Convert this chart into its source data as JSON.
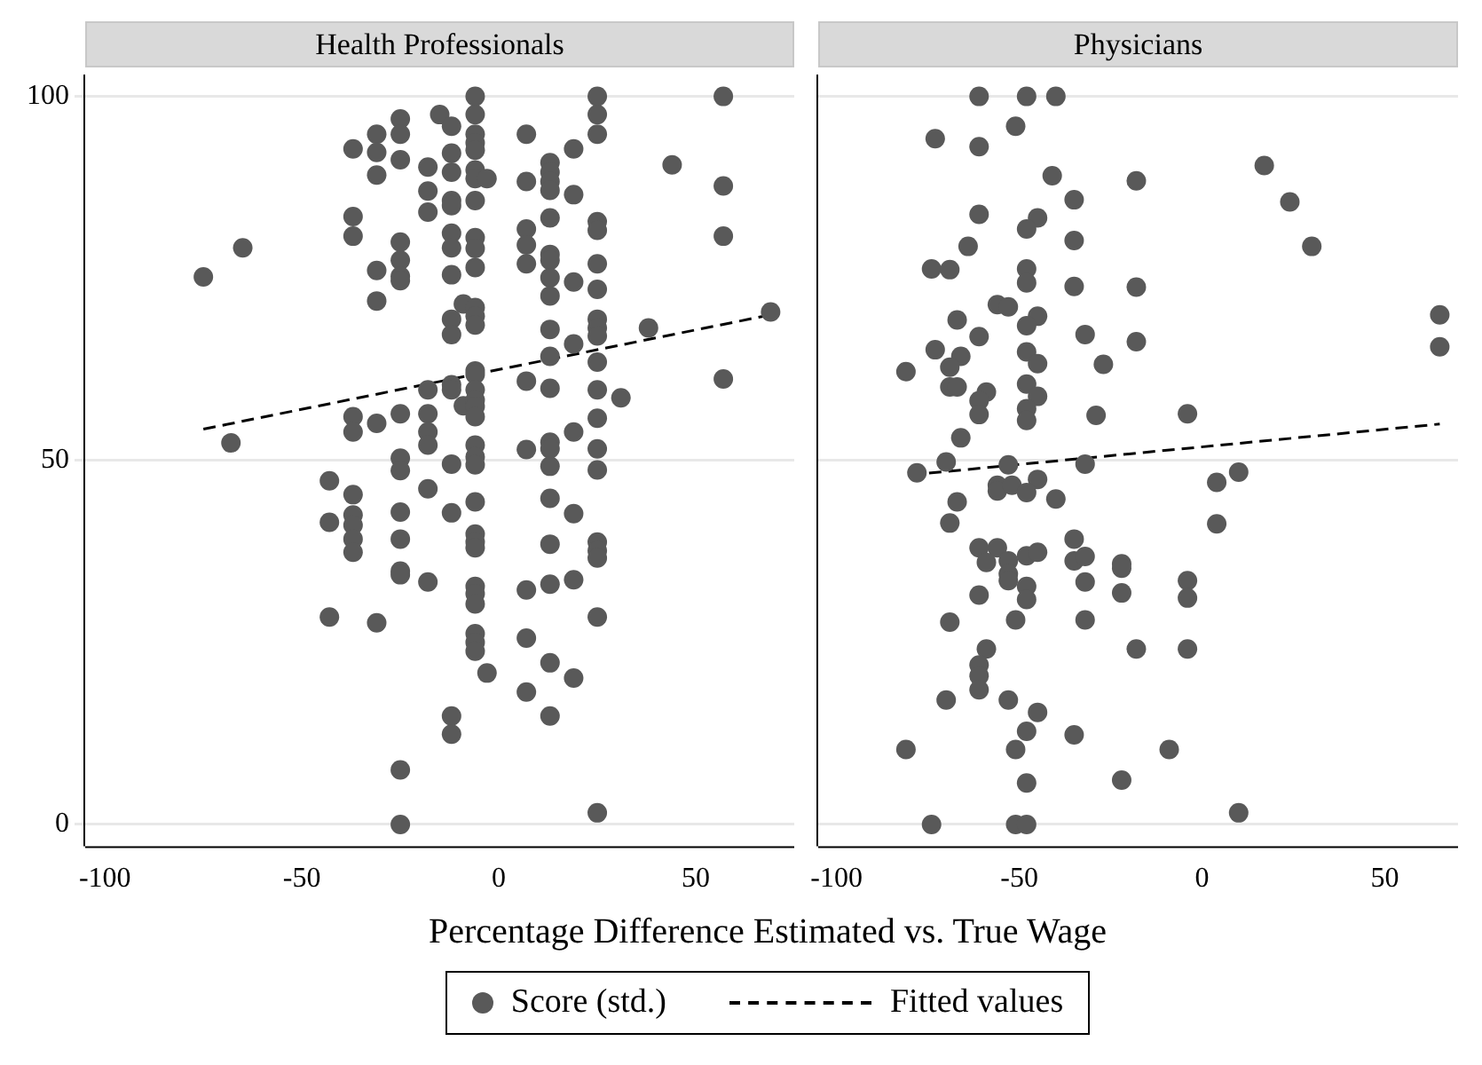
{
  "chart_data": [
    {
      "type": "scatter",
      "title": "Health Professionals",
      "xlabel": "Percentage Difference Estimated vs. True Wage",
      "xlim": [
        -105,
        75
      ],
      "xticks": [
        -100,
        -50,
        0,
        50
      ],
      "ylim": [
        -3,
        103
      ],
      "yticks": [
        0,
        50,
        100
      ],
      "grid": "y",
      "legend": "bottom",
      "series": [
        {
          "name": "Score (std.)",
          "marker": "circle",
          "color": "#595959",
          "x": [
            -75,
            -68,
            -65,
            -43,
            -43,
            -43,
            -37,
            -37,
            -37,
            -37,
            -37,
            -37,
            -37,
            -37,
            -37,
            -37,
            -31,
            -31,
            -31,
            -31,
            -31,
            -31,
            -31,
            -25,
            -25,
            -25,
            -25,
            -25,
            -25,
            -25,
            -25,
            -25,
            -25,
            -25,
            -25,
            -25,
            -25,
            -25,
            -25,
            -18,
            -18,
            -18,
            -18,
            -18,
            -18,
            -18,
            -18,
            -18,
            -15,
            -12,
            -12,
            -12,
            -12,
            -12,
            -12,
            -12,
            -12,
            -12,
            -12,
            -12,
            -12,
            -12,
            -12,
            -12,
            -12,
            -9,
            -9,
            -6,
            -6,
            -6,
            -6,
            -6,
            -6,
            -6,
            -6,
            -6,
            -6,
            -6,
            -6,
            -6,
            -6,
            -6,
            -6,
            -6,
            -6,
            -6,
            -6,
            -6,
            -6,
            -6,
            -6,
            -6,
            -6,
            -6,
            -6,
            -6,
            -6,
            -6,
            -6,
            -6,
            -3,
            -3,
            7,
            7,
            7,
            7,
            7,
            7,
            7,
            7,
            7,
            7,
            13,
            13,
            13,
            13,
            13,
            13,
            13,
            13,
            13,
            13,
            13,
            13,
            13,
            13,
            13,
            13,
            13,
            13,
            13,
            13,
            19,
            19,
            19,
            19,
            19,
            19,
            19,
            19,
            25,
            25,
            25,
            25,
            25,
            25,
            25,
            25,
            25,
            25,
            25,
            25,
            25,
            25,
            25,
            25,
            25,
            25,
            25,
            25,
            31,
            38,
            44,
            57,
            57,
            57,
            57,
            69
          ],
          "values": [
            75.2,
            52.4,
            79.2,
            47.2,
            41.5,
            28.5,
            92.8,
            83.5,
            80.8,
            56,
            53.9,
            45.3,
            42.5,
            41.1,
            39.2,
            37.4,
            94.8,
            92.3,
            89.2,
            76.1,
            71.9,
            55.1,
            27.7,
            96.9,
            94.8,
            91.3,
            80,
            77.5,
            75.3,
            74.7,
            56.4,
            50.3,
            48.6,
            42.9,
            39.2,
            34.8,
            34.3,
            7.5,
            0,
            90.3,
            87,
            84.1,
            59.7,
            56.4,
            53.9,
            52.1,
            46.1,
            33.3,
            97.5,
            95.9,
            92.2,
            89.6,
            85.7,
            85,
            81.2,
            79.2,
            75.5,
            69.4,
            67.3,
            60.4,
            59.7,
            49.5,
            42.8,
            14.9,
            12.4,
            71.5,
            57.5,
            100,
            97.5,
            94.8,
            93.6,
            92.6,
            89.9,
            88.7,
            85.7,
            80.6,
            79.1,
            76.5,
            71,
            69.8,
            68.6,
            62.3,
            61.8,
            59.7,
            58.3,
            57.4,
            56,
            52.1,
            50.5,
            49.4,
            44.3,
            39.9,
            38.8,
            38,
            32.7,
            31.7,
            30.3,
            26.2,
            25,
            23.8,
            88.7,
            20.8,
            94.8,
            88.3,
            81.8,
            79.6,
            77,
            60.9,
            51.5,
            32.2,
            25.6,
            18.2,
            90.9,
            89.6,
            88.3,
            87.1,
            83.3,
            78.3,
            77.5,
            75.1,
            72.6,
            68,
            64.3,
            59.9,
            52.5,
            51.6,
            49.2,
            44.8,
            38.5,
            33,
            22.2,
            14.9,
            92.8,
            86.5,
            74.5,
            66,
            53.9,
            42.7,
            33.6,
            20.1,
            100,
            97.5,
            94.8,
            82.8,
            81.6,
            77,
            73.5,
            69.4,
            68.2,
            67.1,
            63.5,
            59.7,
            55.8,
            51.6,
            48.7,
            38.8,
            37.6,
            36.6,
            28.5,
            1.6,
            58.6,
            68.2,
            90.6,
            100,
            87.7,
            80.8,
            61.2,
            70.4
          ]
        },
        {
          "name": "Fitted values",
          "type": "line",
          "line_style": "dashed",
          "color": "#000000",
          "x": [
            -75,
            69
          ],
          "values": [
            54.3,
            70.0
          ]
        }
      ]
    },
    {
      "type": "scatter",
      "title": "Physicians",
      "xlim": [
        -105,
        70
      ],
      "xticks": [
        -100,
        -50,
        0,
        50
      ],
      "ylim": [
        -3,
        103
      ],
      "yticks": [
        0,
        50,
        100
      ],
      "grid": "y",
      "tick_labels": "x",
      "series": [
        {
          "marker": "circle",
          "color": "#595959",
          "x": [
            -61,
            -48,
            -40,
            -51,
            -73,
            -61,
            -41,
            -18,
            -35,
            17,
            24,
            30,
            -61,
            -45,
            -48,
            -35,
            -64,
            -74,
            -69,
            -48,
            -48,
            -35,
            -18,
            -56,
            -53,
            65,
            65,
            -67,
            -45,
            -48,
            -61,
            -32,
            -18,
            -73,
            -66,
            -69,
            -48,
            -45,
            -27,
            -81,
            -69,
            -67,
            -59,
            -61,
            -61,
            -48,
            -45,
            -48,
            -48,
            -29,
            -4,
            -66,
            -70,
            -78,
            -53,
            -32,
            10,
            4,
            4,
            -56,
            -56,
            -52,
            -45,
            -48,
            -40,
            -67,
            -69,
            -35,
            -61,
            -56,
            -59,
            -53,
            -48,
            -45,
            -35,
            -32,
            -22,
            -22,
            -53,
            -53,
            -48,
            -48,
            -32,
            -4,
            -4,
            -61,
            -22,
            -69,
            -51,
            -32,
            -59,
            -18,
            -4,
            -61,
            -61,
            -61,
            -70,
            -53,
            -45,
            -48,
            -35,
            -81,
            -51,
            -9,
            -48,
            -22,
            -74,
            -51,
            -48,
            10
          ],
          "values": [
            100,
            100,
            100,
            95.9,
            94.2,
            93.1,
            89.1,
            88.4,
            85.8,
            90.5,
            85.5,
            79.4,
            83.8,
            83.3,
            81.8,
            80.2,
            79.4,
            76.3,
            76.2,
            76.3,
            74.4,
            73.9,
            73.8,
            71.4,
            71.1,
            70,
            65.6,
            69.3,
            69.8,
            68.5,
            67,
            67.3,
            66.3,
            65.2,
            64.3,
            62.8,
            64.9,
            63.3,
            63.2,
            62.2,
            60.1,
            60.1,
            59.4,
            58.2,
            56.3,
            60.5,
            58.8,
            57.1,
            55.5,
            56.2,
            56.4,
            53.1,
            49.8,
            48.3,
            49.4,
            49.5,
            48.4,
            47,
            41.3,
            46.6,
            45.8,
            46.6,
            47.4,
            45.6,
            44.7,
            44.3,
            41.4,
            39.2,
            38,
            38,
            36,
            36.2,
            36.9,
            37.4,
            36.2,
            36.8,
            35.8,
            35.2,
            34.4,
            33.5,
            32.7,
            30.9,
            33.3,
            33.5,
            31.1,
            31.5,
            31.8,
            27.8,
            28.1,
            28.1,
            24.1,
            24.1,
            24.1,
            21.9,
            20.4,
            18.5,
            17.1,
            17.1,
            15.4,
            12.8,
            12.3,
            10.3,
            10.3,
            10.3,
            5.7,
            6.1,
            0,
            0,
            0,
            1.6
          ]
        },
        {
          "type": "line",
          "line_style": "dashed",
          "color": "#000000",
          "x": [
            -80,
            65
          ],
          "values": [
            48,
            55
          ]
        }
      ]
    }
  ]
}
